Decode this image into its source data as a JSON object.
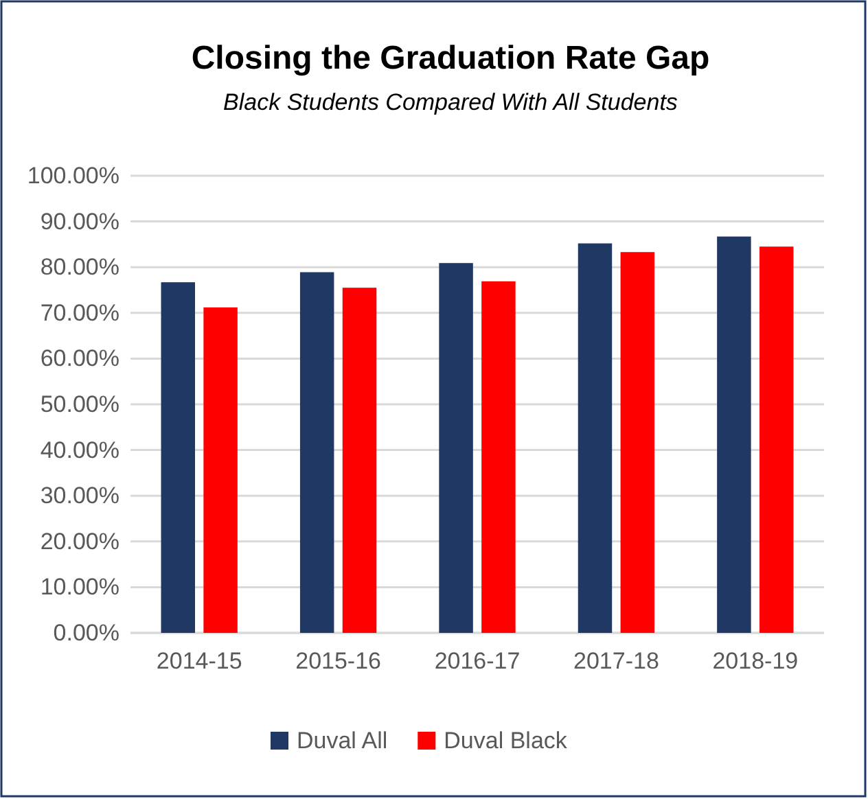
{
  "chart_data": {
    "type": "bar",
    "title": "Closing the Graduation Rate Gap",
    "subtitle": "Black Students Compared With All Students",
    "categories": [
      "2014-15",
      "2015-16",
      "2016-17",
      "2017-18",
      "2018-19"
    ],
    "series": [
      {
        "name": "Duval All",
        "color": "#203864",
        "values": [
          76.7,
          78.9,
          80.9,
          85.2,
          86.7
        ]
      },
      {
        "name": "Duval Black",
        "color": "#ff0000",
        "values": [
          71.2,
          75.5,
          76.9,
          83.3,
          84.5
        ]
      }
    ],
    "ylim": [
      0,
      100
    ],
    "yticks": [
      {
        "value": 0,
        "label": "0.00%"
      },
      {
        "value": 10,
        "label": "10.00%"
      },
      {
        "value": 20,
        "label": "20.00%"
      },
      {
        "value": 30,
        "label": "30.00%"
      },
      {
        "value": 40,
        "label": "40.00%"
      },
      {
        "value": 50,
        "label": "50.00%"
      },
      {
        "value": 60,
        "label": "60.00%"
      },
      {
        "value": 70,
        "label": "70.00%"
      },
      {
        "value": 80,
        "label": "80.00%"
      },
      {
        "value": 90,
        "label": "90.00%"
      },
      {
        "value": 100,
        "label": "100.00%"
      }
    ],
    "grid": "y",
    "legend": "bottom"
  }
}
